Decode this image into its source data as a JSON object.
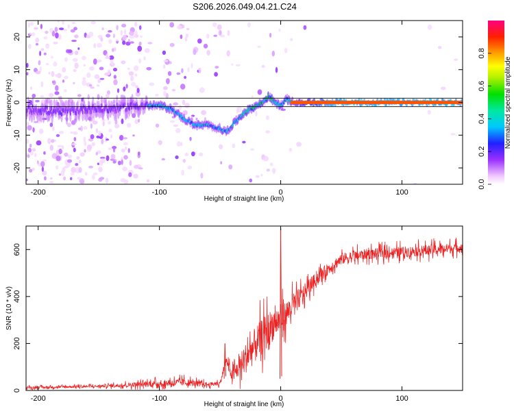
{
  "title": "S206.2026.049.04.21.C24",
  "chart_data": [
    {
      "type": "heatmap",
      "name": "spectrogram",
      "xlabel": "Height of straight line (km)",
      "ylabel": "Frequency (Hz)",
      "xlim": [
        -210,
        150
      ],
      "ylim": [
        -25,
        25
      ],
      "x_ticks": [
        -200,
        -100,
        0,
        100
      ],
      "y_ticks": [
        -20,
        -10,
        0,
        10,
        20
      ],
      "colorbar": {
        "label": "Normalized spectral amplitude",
        "ticks": [
          0.0,
          0.2,
          0.4,
          0.6,
          0.8
        ],
        "range": [
          0,
          1
        ]
      },
      "ridge": {
        "x": [
          -210,
          -180,
          -160,
          -140,
          -120,
          -110,
          -100,
          -90,
          -80,
          -70,
          -60,
          -50,
          -45,
          -40,
          -35,
          -30,
          -20,
          -15,
          -10,
          -5,
          0,
          5,
          10,
          20,
          50,
          100,
          150
        ],
        "freq": [
          -2,
          -3,
          -2,
          -2,
          -1,
          -1,
          -1,
          -2,
          -5,
          -7,
          -7,
          -8,
          -9,
          -7,
          -5,
          -3,
          -1,
          0,
          2,
          0,
          -1,
          1,
          0,
          0,
          0,
          0,
          0
        ]
      }
    },
    {
      "type": "line",
      "name": "snr",
      "xlabel": "Height of straight line (km)",
      "ylabel": "SNR (10 * v/v)",
      "xlim": [
        -210,
        150
      ],
      "ylim": [
        0,
        700
      ],
      "x_ticks": [
        -200,
        -100,
        0,
        100
      ],
      "y_ticks": [
        0,
        200,
        400,
        600
      ],
      "color": "#ee2222",
      "envelope": {
        "x": [
          -210,
          -150,
          -100,
          -80,
          -60,
          -50,
          -45,
          -40,
          -30,
          -20,
          -10,
          -5,
          0,
          10,
          20,
          30,
          40,
          50,
          70,
          100,
          130,
          150
        ],
        "base": [
          12,
          18,
          30,
          35,
          25,
          30,
          130,
          60,
          130,
          200,
          260,
          290,
          300,
          360,
          420,
          480,
          520,
          560,
          580,
          590,
          600,
          610
        ],
        "noise": [
          10,
          12,
          30,
          35,
          20,
          20,
          30,
          60,
          140,
          170,
          170,
          150,
          130,
          110,
          80,
          60,
          55,
          55,
          50,
          50,
          50,
          45
        ]
      },
      "spikes": [
        {
          "x": -46,
          "y": 200
        },
        {
          "x": 0,
          "y": 690
        }
      ]
    }
  ]
}
